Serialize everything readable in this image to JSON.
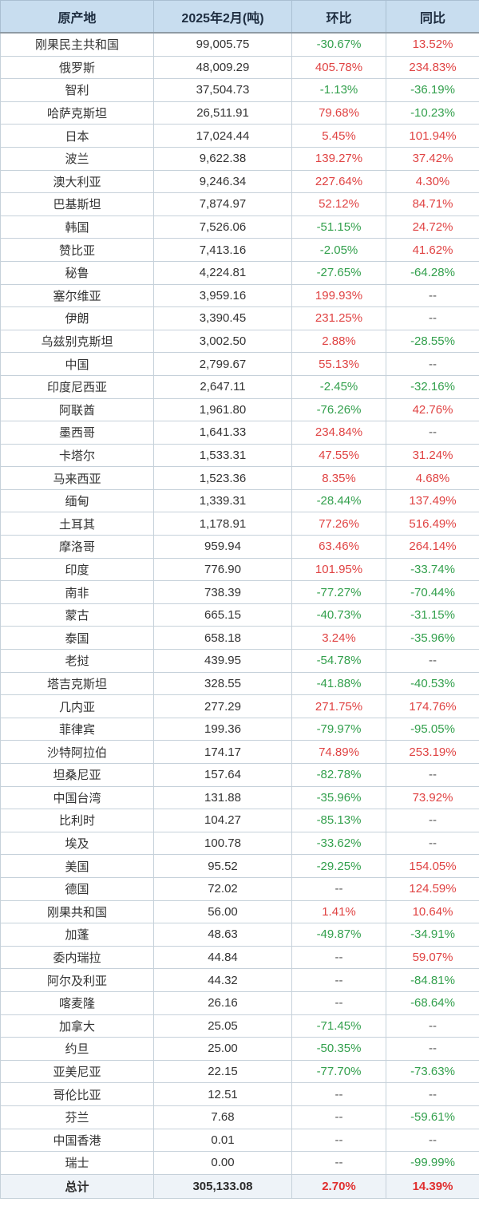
{
  "accent_colors": {
    "header_bg": "#c8ddef",
    "total_row_bg": "#eef3f8",
    "positive_red": "#e04343",
    "negative_green": "#33a04d",
    "neutral_dash": "#555555",
    "border": "#c6d1da"
  },
  "chart_data": {
    "type": "table",
    "columns": [
      "原产地",
      "2025年2月(吨)",
      "环比",
      "同比"
    ],
    "rows": [
      [
        "刚果民主共和国",
        "99,005.75",
        "-30.67%",
        "13.52%"
      ],
      [
        "俄罗斯",
        "48,009.29",
        "405.78%",
        "234.83%"
      ],
      [
        "智利",
        "37,504.73",
        "-1.13%",
        "-36.19%"
      ],
      [
        "哈萨克斯坦",
        "26,511.91",
        "79.68%",
        "-10.23%"
      ],
      [
        "日本",
        "17,024.44",
        "5.45%",
        "101.94%"
      ],
      [
        "波兰",
        "9,622.38",
        "139.27%",
        "37.42%"
      ],
      [
        "澳大利亚",
        "9,246.34",
        "227.64%",
        "4.30%"
      ],
      [
        "巴基斯坦",
        "7,874.97",
        "52.12%",
        "84.71%"
      ],
      [
        "韩国",
        "7,526.06",
        "-51.15%",
        "24.72%"
      ],
      [
        "赞比亚",
        "7,413.16",
        "-2.05%",
        "41.62%"
      ],
      [
        "秘鲁",
        "4,224.81",
        "-27.65%",
        "-64.28%"
      ],
      [
        "塞尔维亚",
        "3,959.16",
        "199.93%",
        "--"
      ],
      [
        "伊朗",
        "3,390.45",
        "231.25%",
        "--"
      ],
      [
        "乌兹别克斯坦",
        "3,002.50",
        "2.88%",
        "-28.55%"
      ],
      [
        "中国",
        "2,799.67",
        "55.13%",
        "--"
      ],
      [
        "印度尼西亚",
        "2,647.11",
        "-2.45%",
        "-32.16%"
      ],
      [
        "阿联酋",
        "1,961.80",
        "-76.26%",
        "42.76%"
      ],
      [
        "墨西哥",
        "1,641.33",
        "234.84%",
        "--"
      ],
      [
        "卡塔尔",
        "1,533.31",
        "47.55%",
        "31.24%"
      ],
      [
        "马来西亚",
        "1,523.36",
        "8.35%",
        "4.68%"
      ],
      [
        "缅甸",
        "1,339.31",
        "-28.44%",
        "137.49%"
      ],
      [
        "土耳其",
        "1,178.91",
        "77.26%",
        "516.49%"
      ],
      [
        "摩洛哥",
        "959.94",
        "63.46%",
        "264.14%"
      ],
      [
        "印度",
        "776.90",
        "101.95%",
        "-33.74%"
      ],
      [
        "南非",
        "738.39",
        "-77.27%",
        "-70.44%"
      ],
      [
        "蒙古",
        "665.15",
        "-40.73%",
        "-31.15%"
      ],
      [
        "泰国",
        "658.18",
        "3.24%",
        "-35.96%"
      ],
      [
        "老挝",
        "439.95",
        "-54.78%",
        "--"
      ],
      [
        "塔吉克斯坦",
        "328.55",
        "-41.88%",
        "-40.53%"
      ],
      [
        "几内亚",
        "277.29",
        "271.75%",
        "174.76%"
      ],
      [
        "菲律宾",
        "199.36",
        "-79.97%",
        "-95.05%"
      ],
      [
        "沙特阿拉伯",
        "174.17",
        "74.89%",
        "253.19%"
      ],
      [
        "坦桑尼亚",
        "157.64",
        "-82.78%",
        "--"
      ],
      [
        "中国台湾",
        "131.88",
        "-35.96%",
        "73.92%"
      ],
      [
        "比利时",
        "104.27",
        "-85.13%",
        "--"
      ],
      [
        "埃及",
        "100.78",
        "-33.62%",
        "--"
      ],
      [
        "美国",
        "95.52",
        "-29.25%",
        "154.05%"
      ],
      [
        "德国",
        "72.02",
        "--",
        "124.59%"
      ],
      [
        "刚果共和国",
        "56.00",
        "1.41%",
        "10.64%"
      ],
      [
        "加蓬",
        "48.63",
        "-49.87%",
        "-34.91%"
      ],
      [
        "委内瑞拉",
        "44.84",
        "--",
        "59.07%"
      ],
      [
        "阿尔及利亚",
        "44.32",
        "--",
        "-84.81%"
      ],
      [
        "喀麦隆",
        "26.16",
        "--",
        "-68.64%"
      ],
      [
        "加拿大",
        "25.05",
        "-71.45%",
        "--"
      ],
      [
        "约旦",
        "25.00",
        "-50.35%",
        "--"
      ],
      [
        "亚美尼亚",
        "22.15",
        "-77.70%",
        "-73.63%"
      ],
      [
        "哥伦比亚",
        "12.51",
        "--",
        "--"
      ],
      [
        "芬兰",
        "7.68",
        "--",
        "-59.61%"
      ],
      [
        "中国香港",
        "0.01",
        "--",
        "--"
      ],
      [
        "瑞士",
        "0.00",
        "--",
        "-99.99%"
      ]
    ],
    "total_row": [
      "总计",
      "305,133.08",
      "2.70%",
      "14.39%"
    ]
  }
}
